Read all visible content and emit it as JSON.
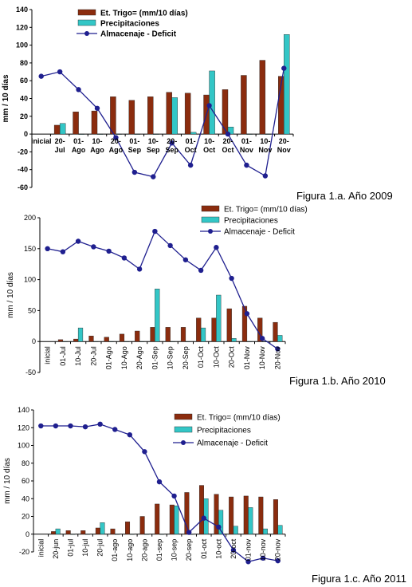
{
  "chart_data": [
    {
      "type": "bar",
      "caption": "Figura 1.a. Año 2009",
      "ylabel": "mm / 10 días",
      "ylim": [
        -60,
        140
      ],
      "yticks": [
        -60,
        -40,
        -20,
        0,
        20,
        40,
        60,
        80,
        100,
        120,
        140
      ],
      "categories": [
        "inicial",
        "20-\nJul",
        "01-\nAgo",
        "10-\nAgo",
        "20-\nAgo",
        "01-\nSep",
        "10-\nSep",
        "20-\nSep",
        "01-\nOct",
        "10-\nOct",
        "20-\nOct",
        "01-\nNov",
        "10-\nNov",
        "20-\nNov"
      ],
      "series": [
        {
          "name": "Et. Trigo= (mm/10 días)",
          "kind": "bar",
          "color": "#8B2C0E",
          "values": [
            null,
            10,
            25,
            26,
            42,
            38,
            42,
            47,
            46,
            44,
            50,
            66,
            83,
            65
          ]
        },
        {
          "name": "Precipitaciones",
          "kind": "bar",
          "color": "#33C6C6",
          "values": [
            null,
            12,
            0,
            0,
            0,
            0,
            0,
            41,
            2,
            71,
            8,
            0,
            0,
            112
          ]
        },
        {
          "name": "Almacenaje - Deficit",
          "kind": "line",
          "color": "#1F1F8F",
          "values": [
            65,
            70,
            50,
            29,
            -4,
            -43,
            -48,
            -10,
            -35,
            32,
            0,
            -35,
            -47,
            74
          ]
        }
      ],
      "legend": "top-center"
    },
    {
      "type": "bar",
      "caption": "Figura 1.b. Año 2010",
      "ylabel": "mm / 10 días",
      "ylim": [
        -50,
        200
      ],
      "yticks": [
        -50,
        0,
        50,
        100,
        150,
        200
      ],
      "categories": [
        "inicial",
        "01-Jul",
        "10-Jul",
        "20-Jul",
        "01-Ago",
        "10-Ago",
        "20-Ago",
        "01-Sep",
        "10-Sep",
        "20-Sep",
        "01-Oct",
        "10-Oct",
        "20-Oct",
        "01-Nov",
        "10-Nov",
        "20-Nov"
      ],
      "series": [
        {
          "name": "Et. Trigo= (mm/10 días)",
          "kind": "bar",
          "color": "#8B2C0E",
          "values": [
            null,
            3,
            4,
            9,
            7,
            12,
            17,
            23,
            23,
            23,
            38,
            38,
            53,
            57,
            38,
            31
          ]
        },
        {
          "name": "Precipitaciones",
          "kind": "bar",
          "color": "#33C6C6",
          "values": [
            null,
            0,
            22,
            0,
            0,
            0,
            0,
            85,
            0,
            0,
            22,
            75,
            5,
            0,
            0,
            10
          ]
        },
        {
          "name": "Almacenaje - Deficit",
          "kind": "line",
          "color": "#1F1F8F",
          "values": [
            150,
            145,
            162,
            153,
            146,
            135,
            117,
            178,
            155,
            132,
            115,
            152,
            102,
            45,
            5,
            -12
          ]
        }
      ],
      "legend": "top-right"
    },
    {
      "type": "bar",
      "caption": "Figura 1.c. Año 2011",
      "ylabel": "mm / 10 días",
      "ylim": [
        -20,
        140
      ],
      "yticks": [
        -20,
        0,
        20,
        40,
        60,
        80,
        100,
        120,
        140
      ],
      "categories": [
        "inicial",
        "20-jun",
        "01-jul",
        "10-jul",
        "20-jul",
        "01-ago",
        "10-ago",
        "20-ago",
        "01-sep",
        "10-sep",
        "20-sep",
        "01-oct",
        "10-oct",
        "20-oct",
        "01-nov",
        "10-nov",
        "20-nov"
      ],
      "series": [
        {
          "name": "Et. Trigo= (mm/10 días)",
          "kind": "bar",
          "color": "#8B2C0E",
          "values": [
            null,
            3,
            4,
            4,
            7,
            6,
            14,
            20,
            34,
            33,
            47,
            55,
            45,
            42,
            43,
            42,
            39
          ]
        },
        {
          "name": "Precipitaciones",
          "kind": "bar",
          "color": "#33C6C6",
          "values": [
            null,
            6,
            0,
            0,
            13,
            0,
            0,
            0,
            0,
            32,
            0,
            40,
            27,
            9,
            30,
            6,
            10
          ]
        },
        {
          "name": "Almacenaje - Deficit",
          "kind": "line",
          "color": "#1F1F8F",
          "values": [
            122,
            122,
            122,
            121,
            124,
            118,
            112,
            93,
            59,
            43,
            2,
            18,
            8,
            -18,
            -31,
            -27,
            -30
          ]
        }
      ],
      "legend": "top-right"
    }
  ]
}
